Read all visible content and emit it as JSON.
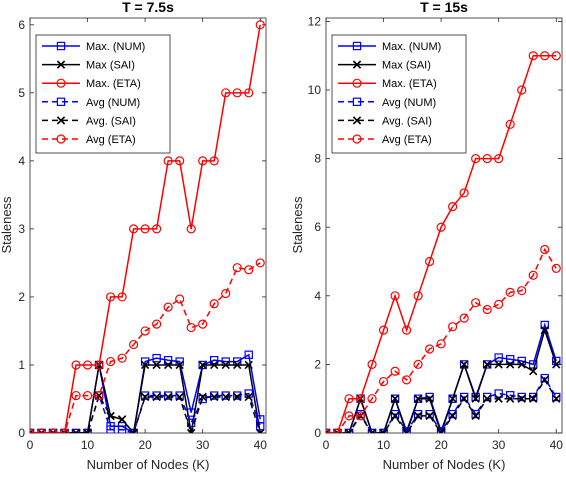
{
  "chart_data": [
    {
      "type": "line",
      "title": "T = 7.5s",
      "xlabel": "Number of Nodes (K)",
      "ylabel": "Staleness",
      "xlim": [
        0,
        41
      ],
      "ylim": [
        0,
        6.1
      ],
      "xticks": [
        "0",
        "10",
        "20",
        "30",
        "40"
      ],
      "yticks": [
        "0",
        "1",
        "2",
        "3",
        "4",
        "5",
        "6"
      ],
      "grid": false,
      "legend_position": "top-left",
      "x": [
        0,
        2,
        4,
        6,
        8,
        10,
        12,
        14,
        16,
        18,
        20,
        22,
        24,
        26,
        28,
        30,
        32,
        34,
        36,
        38,
        40
      ],
      "series": [
        {
          "name": "Max. (NUM)",
          "color": "#0000ff",
          "dash": "solid",
          "marker": "square",
          "values": [
            0,
            0,
            0,
            0,
            0,
            0,
            1.0,
            0.1,
            0.1,
            0,
            1.05,
            1.1,
            1.07,
            1.05,
            0.3,
            1.0,
            1.07,
            1.05,
            1.05,
            1.15,
            0.2
          ]
        },
        {
          "name": "Max (SAI)",
          "color": "#000000",
          "dash": "solid",
          "marker": "x",
          "values": [
            0,
            0,
            0,
            0,
            0,
            0,
            1.0,
            0.25,
            0.2,
            0,
            1.0,
            1.0,
            1.0,
            1.0,
            0,
            1.0,
            1.0,
            1.0,
            1.0,
            1.0,
            0
          ]
        },
        {
          "name": "Max. (ETA)",
          "color": "#ff0000",
          "dash": "solid",
          "marker": "circle",
          "values": [
            0,
            0,
            0,
            0,
            1.0,
            1.0,
            1.0,
            2.0,
            2.0,
            3.0,
            3.0,
            3.0,
            4.0,
            4.0,
            3.0,
            4.0,
            4.0,
            5.0,
            5.0,
            5.0,
            6.0
          ]
        },
        {
          "name": "Avg (NUM)",
          "color": "#0000ff",
          "dash": "dash",
          "marker": "square",
          "values": [
            0,
            0,
            0,
            0,
            0,
            0,
            0.55,
            0.05,
            0.05,
            0,
            0.55,
            0.55,
            0.55,
            0.55,
            0.15,
            0.5,
            0.55,
            0.55,
            0.55,
            0.58,
            0.1
          ]
        },
        {
          "name": "Avg. (SAI)",
          "color": "#000000",
          "dash": "dash",
          "marker": "x",
          "values": [
            0,
            0,
            0,
            0,
            0,
            0,
            0.55,
            0.25,
            0.2,
            0,
            0.53,
            0.53,
            0.53,
            0.53,
            0,
            0.53,
            0.53,
            0.53,
            0.53,
            0.53,
            0
          ]
        },
        {
          "name": "Avg (ETA)",
          "color": "#ff0000",
          "dash": "dash",
          "marker": "circle",
          "values": [
            0,
            0,
            0,
            0,
            0.55,
            0.55,
            0.55,
            1.05,
            1.1,
            1.3,
            1.5,
            1.6,
            1.85,
            1.97,
            1.55,
            1.6,
            1.9,
            2.05,
            2.43,
            2.4,
            2.5
          ]
        }
      ]
    },
    {
      "type": "line",
      "title": "T = 15s",
      "xlabel": "Number of Nodes (K)",
      "ylabel": "Staleness",
      "xlim": [
        0,
        41
      ],
      "ylim": [
        0,
        12.1
      ],
      "xticks": [
        "0",
        "10",
        "20",
        "30",
        "40"
      ],
      "yticks": [
        "0",
        "2",
        "4",
        "6",
        "8",
        "10",
        "12"
      ],
      "grid": false,
      "legend_position": "top-left",
      "x": [
        0,
        2,
        4,
        6,
        8,
        10,
        12,
        14,
        16,
        18,
        20,
        22,
        24,
        26,
        28,
        30,
        32,
        34,
        36,
        38,
        40
      ],
      "series": [
        {
          "name": "Max. (NUM)",
          "color": "#0000ff",
          "dash": "solid",
          "marker": "square",
          "values": [
            0,
            0,
            0,
            1.0,
            0,
            0,
            1.0,
            0.05,
            1.0,
            1.05,
            0.05,
            1.0,
            2.0,
            1.05,
            2.0,
            2.2,
            2.15,
            2.1,
            2.0,
            3.15,
            2.1
          ]
        },
        {
          "name": "Max (SAI)",
          "color": "#000000",
          "dash": "solid",
          "marker": "x",
          "values": [
            0,
            0,
            0,
            1.0,
            0,
            0,
            1.0,
            0,
            1.0,
            1.0,
            0,
            1.0,
            2.0,
            1.0,
            2.0,
            2.0,
            2.0,
            2.0,
            1.8,
            3.0,
            2.0
          ]
        },
        {
          "name": "Max. (ETA)",
          "color": "#ff0000",
          "dash": "solid",
          "marker": "circle",
          "values": [
            0,
            0,
            1.0,
            1.0,
            2.0,
            3.0,
            4.0,
            3.0,
            4.0,
            5.0,
            6.0,
            6.6,
            7.0,
            8.0,
            8.0,
            8.0,
            9.0,
            10.0,
            11.0,
            11.0,
            11.0
          ]
        },
        {
          "name": "Avg (NUM)",
          "color": "#0000ff",
          "dash": "dash",
          "marker": "square",
          "values": [
            0,
            0,
            0,
            0.55,
            0,
            0,
            0.55,
            0.05,
            0.55,
            0.55,
            0.05,
            0.55,
            1.05,
            0.55,
            1.05,
            1.15,
            1.1,
            1.05,
            1.05,
            1.6,
            1.05
          ]
        },
        {
          "name": "Avg. (SAI)",
          "color": "#000000",
          "dash": "dash",
          "marker": "x",
          "values": [
            0,
            0,
            0,
            0.5,
            0,
            0,
            0.5,
            0,
            0.5,
            0.5,
            0,
            0.5,
            1.0,
            0.5,
            1.0,
            1.0,
            1.0,
            1.0,
            1.0,
            1.55,
            1.0
          ]
        },
        {
          "name": "Avg (ETA)",
          "color": "#ff0000",
          "dash": "dash",
          "marker": "circle",
          "values": [
            0,
            0,
            0.5,
            0.5,
            1.0,
            1.5,
            1.8,
            1.55,
            2.0,
            2.45,
            2.6,
            3.1,
            3.35,
            3.8,
            3.6,
            3.75,
            4.1,
            4.15,
            4.6,
            5.35,
            4.8
          ]
        }
      ]
    }
  ]
}
